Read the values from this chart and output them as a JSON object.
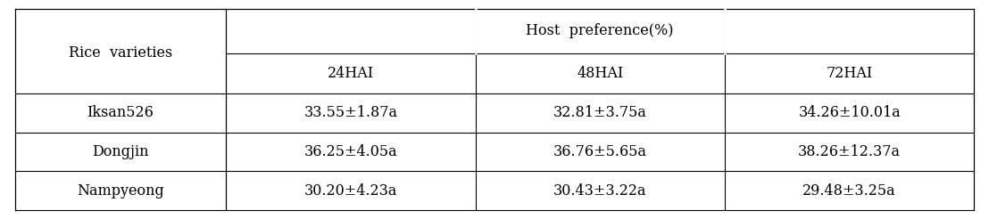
{
  "col_header_top": "Host  preference(%)",
  "col_header_sub": [
    "24HAI",
    "48HAI",
    "72HAI"
  ],
  "row_header_label": "Rice  varieties",
  "rows": [
    {
      "variety": "Iksan526",
      "values": [
        "33.55±1.87a",
        "32.81±3.75a",
        "34.26±10.01a"
      ]
    },
    {
      "variety": "Dongjin",
      "values": [
        "36.25±4.05a",
        "36.76±5.65a",
        "38.26±12.37a"
      ]
    },
    {
      "variety": "Nampyeong",
      "values": [
        "30.20±4.23a",
        "30.43±3.22a",
        "29.48±3.25a"
      ]
    }
  ],
  "font_size": 11.5,
  "bg_color": "#ffffff",
  "line_color": "#000000",
  "text_color": "#000000",
  "fig_width": 11.08,
  "fig_height": 2.46,
  "dpi": 100
}
